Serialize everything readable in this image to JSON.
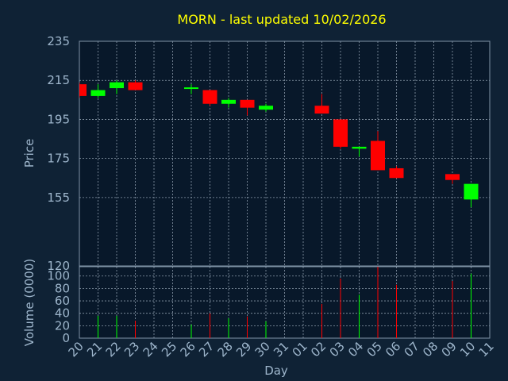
{
  "chart_data": {
    "type": "candlestick",
    "title": "MORN - last updated 10/02/2026",
    "xlabel": "Day",
    "price_panel": {
      "ylabel": "Price",
      "ylim": [
        120,
        235
      ],
      "yticks": [
        235,
        215,
        195,
        175,
        155,
        120
      ]
    },
    "volume_panel": {
      "ylabel": "Volume (0000)",
      "ylim": [
        0,
        115
      ],
      "yticks": [
        0,
        20,
        40,
        60,
        80,
        100
      ]
    },
    "x_tick_labels": [
      "20",
      "21",
      "22",
      "23",
      "24",
      "25",
      "26",
      "27",
      "28",
      "29",
      "30",
      "31",
      "01",
      "02",
      "03",
      "04",
      "05",
      "06",
      "07",
      "08",
      "09",
      "10",
      "11"
    ],
    "grid": true,
    "colors": {
      "up": "#00ff00",
      "down": "#ff0000",
      "background": "#0f2235",
      "title": "#ffff00",
      "text": "#9eb6cc"
    },
    "candles": [
      {
        "day": "20",
        "open": 213,
        "high": 214,
        "low": 206,
        "close": 207,
        "volume": 0
      },
      {
        "day": "21",
        "open": 207,
        "high": 213,
        "low": 206,
        "close": 210,
        "volume": 36
      },
      {
        "day": "22",
        "open": 211,
        "high": 215,
        "low": 208,
        "close": 214,
        "volume": 36
      },
      {
        "day": "23",
        "open": 214,
        "high": 215,
        "low": 210,
        "close": 210,
        "volume": 28
      },
      {
        "day": "26",
        "open": 211,
        "high": 213,
        "low": 208,
        "close": 211,
        "volume": 22
      },
      {
        "day": "27",
        "open": 210,
        "high": 210,
        "low": 202,
        "close": 203,
        "volume": 40
      },
      {
        "day": "28",
        "open": 203,
        "high": 206,
        "low": 201,
        "close": 205,
        "volume": 32
      },
      {
        "day": "29",
        "open": 205,
        "high": 205,
        "low": 197,
        "close": 201,
        "volume": 35
      },
      {
        "day": "30",
        "open": 200,
        "high": 203,
        "low": 199,
        "close": 202,
        "volume": 27
      },
      {
        "day": "02",
        "open": 202,
        "high": 208,
        "low": 198,
        "close": 198,
        "volume": 55
      },
      {
        "day": "03",
        "open": 195,
        "high": 195,
        "low": 180,
        "close": 181,
        "volume": 96
      },
      {
        "day": "04",
        "open": 180,
        "high": 181,
        "low": 176,
        "close": 181,
        "volume": 70
      },
      {
        "day": "05",
        "open": 184,
        "high": 189,
        "low": 169,
        "close": 169,
        "volume": 115
      },
      {
        "day": "06",
        "open": 170,
        "high": 171,
        "low": 165,
        "close": 165,
        "volume": 86
      },
      {
        "day": "09",
        "open": 167,
        "high": 167,
        "low": 162,
        "close": 164,
        "volume": 92
      },
      {
        "day": "10",
        "open": 154,
        "high": 162,
        "low": 150,
        "close": 162,
        "volume": 104
      }
    ]
  }
}
